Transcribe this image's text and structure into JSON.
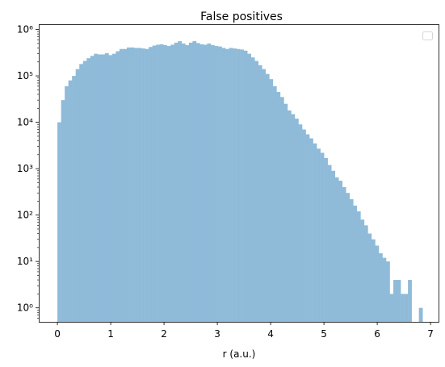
{
  "chart_data": {
    "type": "bar",
    "title": "False positives",
    "xlabel": "r (a.u.)",
    "ylabel": "",
    "xlim": [
      -0.35,
      7.15
    ],
    "ylim": [
      0.5,
      1300000
    ],
    "yscale": "log",
    "x_ticks": [
      0,
      1,
      2,
      3,
      4,
      5,
      6,
      7
    ],
    "y_ticks": [
      {
        "value": 1,
        "label": "10⁰"
      },
      {
        "value": 10,
        "label": "10¹"
      },
      {
        "value": 100,
        "label": "10²"
      },
      {
        "value": 1000,
        "label": "10³"
      },
      {
        "value": 10000,
        "label": "10⁴"
      },
      {
        "value": 100000,
        "label": "10⁵"
      },
      {
        "value": 1000000,
        "label": "10⁶"
      }
    ],
    "grid": false,
    "legend": {
      "placement": "top-right",
      "entries": []
    },
    "bar_color": "#8fbbd9",
    "bin_width": 0.0685,
    "bins": [
      {
        "x": 0.0,
        "y": 10000
      },
      {
        "x": 0.0685,
        "y": 30000
      },
      {
        "x": 0.137,
        "y": 60000
      },
      {
        "x": 0.2055,
        "y": 80000
      },
      {
        "x": 0.274,
        "y": 100000
      },
      {
        "x": 0.3425,
        "y": 140000
      },
      {
        "x": 0.411,
        "y": 180000
      },
      {
        "x": 0.4795,
        "y": 210000
      },
      {
        "x": 0.548,
        "y": 240000
      },
      {
        "x": 0.6165,
        "y": 270000
      },
      {
        "x": 0.685,
        "y": 300000
      },
      {
        "x": 0.7535,
        "y": 290000
      },
      {
        "x": 0.822,
        "y": 290000
      },
      {
        "x": 0.8905,
        "y": 310000
      },
      {
        "x": 0.959,
        "y": 280000
      },
      {
        "x": 1.0275,
        "y": 300000
      },
      {
        "x": 1.096,
        "y": 340000
      },
      {
        "x": 1.1645,
        "y": 380000
      },
      {
        "x": 1.233,
        "y": 380000
      },
      {
        "x": 1.3015,
        "y": 410000
      },
      {
        "x": 1.37,
        "y": 410000
      },
      {
        "x": 1.4385,
        "y": 400000
      },
      {
        "x": 1.507,
        "y": 400000
      },
      {
        "x": 1.5755,
        "y": 390000
      },
      {
        "x": 1.644,
        "y": 380000
      },
      {
        "x": 1.7125,
        "y": 420000
      },
      {
        "x": 1.781,
        "y": 450000
      },
      {
        "x": 1.8495,
        "y": 470000
      },
      {
        "x": 1.918,
        "y": 480000
      },
      {
        "x": 1.9865,
        "y": 460000
      },
      {
        "x": 2.055,
        "y": 440000
      },
      {
        "x": 2.1235,
        "y": 470000
      },
      {
        "x": 2.192,
        "y": 520000
      },
      {
        "x": 2.2605,
        "y": 560000
      },
      {
        "x": 2.329,
        "y": 500000
      },
      {
        "x": 2.3975,
        "y": 460000
      },
      {
        "x": 2.466,
        "y": 520000
      },
      {
        "x": 2.5345,
        "y": 560000
      },
      {
        "x": 2.603,
        "y": 510000
      },
      {
        "x": 2.6715,
        "y": 480000
      },
      {
        "x": 2.74,
        "y": 470000
      },
      {
        "x": 2.8085,
        "y": 500000
      },
      {
        "x": 2.877,
        "y": 460000
      },
      {
        "x": 2.9455,
        "y": 440000
      },
      {
        "x": 3.014,
        "y": 430000
      },
      {
        "x": 3.0825,
        "y": 400000
      },
      {
        "x": 3.151,
        "y": 380000
      },
      {
        "x": 3.2195,
        "y": 400000
      },
      {
        "x": 3.288,
        "y": 390000
      },
      {
        "x": 3.3565,
        "y": 380000
      },
      {
        "x": 3.425,
        "y": 370000
      },
      {
        "x": 3.4935,
        "y": 350000
      },
      {
        "x": 3.562,
        "y": 300000
      },
      {
        "x": 3.6305,
        "y": 250000
      },
      {
        "x": 3.699,
        "y": 210000
      },
      {
        "x": 3.7675,
        "y": 170000
      },
      {
        "x": 3.836,
        "y": 140000
      },
      {
        "x": 3.9045,
        "y": 110000
      },
      {
        "x": 3.973,
        "y": 85000
      },
      {
        "x": 4.0415,
        "y": 60000
      },
      {
        "x": 4.11,
        "y": 45000
      },
      {
        "x": 4.1785,
        "y": 35000
      },
      {
        "x": 4.247,
        "y": 25000
      },
      {
        "x": 4.3155,
        "y": 18000
      },
      {
        "x": 4.384,
        "y": 15000
      },
      {
        "x": 4.4525,
        "y": 12000
      },
      {
        "x": 4.521,
        "y": 9000
      },
      {
        "x": 4.5895,
        "y": 7000
      },
      {
        "x": 4.658,
        "y": 5500
      },
      {
        "x": 4.7265,
        "y": 4500
      },
      {
        "x": 4.795,
        "y": 3500
      },
      {
        "x": 4.8635,
        "y": 2700
      },
      {
        "x": 4.932,
        "y": 2200
      },
      {
        "x": 5.0005,
        "y": 1700
      },
      {
        "x": 5.069,
        "y": 1200
      },
      {
        "x": 5.1375,
        "y": 900
      },
      {
        "x": 5.206,
        "y": 650
      },
      {
        "x": 5.2745,
        "y": 550
      },
      {
        "x": 5.343,
        "y": 400
      },
      {
        "x": 5.4115,
        "y": 300
      },
      {
        "x": 5.48,
        "y": 220
      },
      {
        "x": 5.5485,
        "y": 160
      },
      {
        "x": 5.617,
        "y": 120
      },
      {
        "x": 5.6855,
        "y": 80
      },
      {
        "x": 5.754,
        "y": 60
      },
      {
        "x": 5.8225,
        "y": 40
      },
      {
        "x": 5.891,
        "y": 30
      },
      {
        "x": 5.9595,
        "y": 22
      },
      {
        "x": 6.028,
        "y": 15
      },
      {
        "x": 6.0965,
        "y": 12
      },
      {
        "x": 6.165,
        "y": 10
      },
      {
        "x": 6.2335,
        "y": 2
      },
      {
        "x": 6.302,
        "y": 4
      },
      {
        "x": 6.3705,
        "y": 4
      },
      {
        "x": 6.439,
        "y": 2
      },
      {
        "x": 6.5075,
        "y": 2
      },
      {
        "x": 6.576,
        "y": 4
      },
      {
        "x": 6.7815,
        "y": 1
      }
    ]
  }
}
